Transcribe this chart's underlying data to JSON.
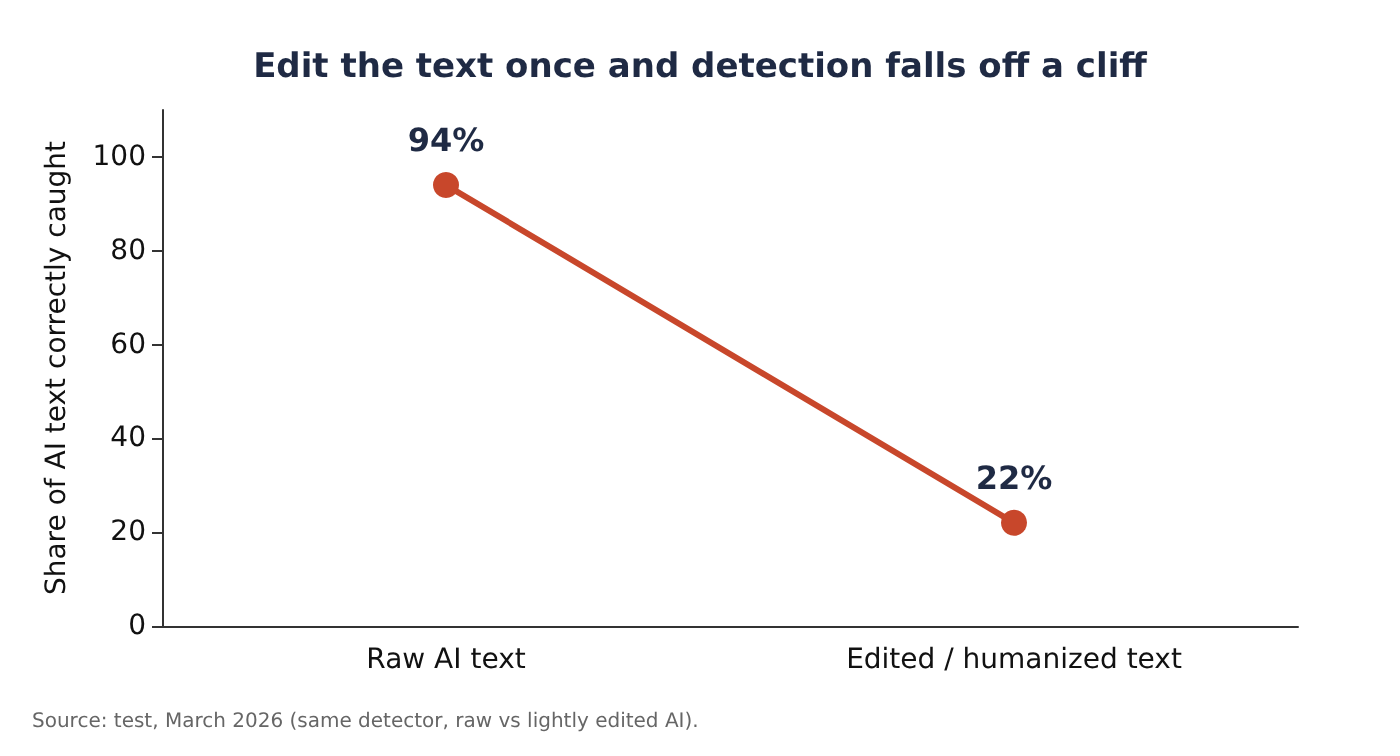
{
  "chart_data": {
    "type": "line",
    "title": "Edit the text once and detection falls off a cliff",
    "ylabel": "Share of AI text correctly caught",
    "categories": [
      "Raw AI text",
      "Edited / humanized text"
    ],
    "series": [
      {
        "color": "#c8472b",
        "values": [
          94,
          22
        ],
        "value_labels": [
          "94%",
          "22%"
        ]
      }
    ],
    "ylim": [
      0,
      110
    ],
    "yticks": [
      0,
      20,
      40,
      60,
      80,
      100
    ],
    "grid": false,
    "marker": "circle",
    "line_style": "solid",
    "annotations": [
      "Source: test, March 2026 (same detector, raw vs lightly edited AI)."
    ]
  }
}
